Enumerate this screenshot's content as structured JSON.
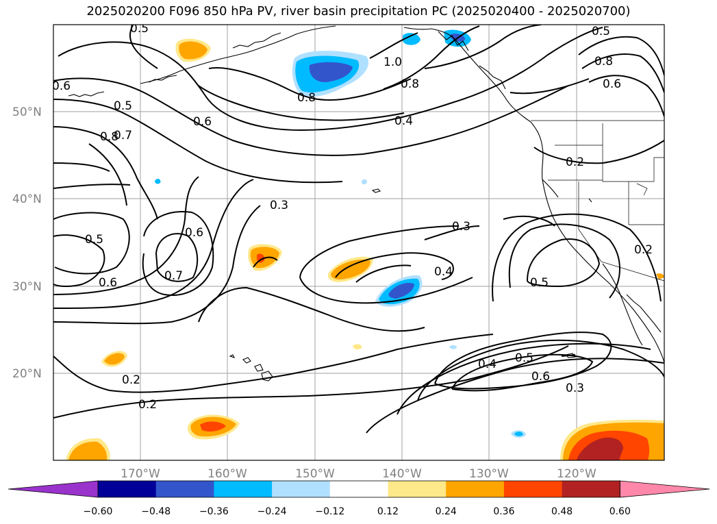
{
  "map": {
    "title": "2025020200 F096 850 hPa PV, river basin precipitation PC (2025020400 - 2025020700)",
    "lat_labels": [
      "50°N",
      "40°N",
      "30°N",
      "20°N"
    ],
    "lon_labels": [
      "170°W",
      "160°W",
      "150°W",
      "140°W",
      "130°W",
      "120°W"
    ],
    "contour_labels": [
      "0.5",
      "0.5",
      "0.6",
      "0.5",
      "0.8",
      "0.7",
      "1.0",
      "0.8",
      "0.8",
      "0.6",
      "0.6",
      "0.8",
      "0.4",
      "0.2",
      "0.3",
      "0.3",
      "0.6",
      "0.5",
      "0.7",
      "0.6",
      "0.4",
      "0.2",
      "0.5",
      "0.5",
      "0.4",
      "0.6",
      "0.3",
      "0.2",
      "0.2"
    ],
    "colorbar": {
      "tick_labels": [
        "−0.60",
        "−0.48",
        "−0.36",
        "−0.24",
        "−0.12",
        "0.12",
        "0.24",
        "0.36",
        "0.48",
        "0.60"
      ],
      "colors": [
        "#9933cc",
        "#000099",
        "#3355cc",
        "#00bbff",
        "#b0e0ff",
        "#ffffff",
        "#ffe88a",
        "#ffa500",
        "#ff4500",
        "#b22222",
        "#ff88aa"
      ]
    }
  }
}
